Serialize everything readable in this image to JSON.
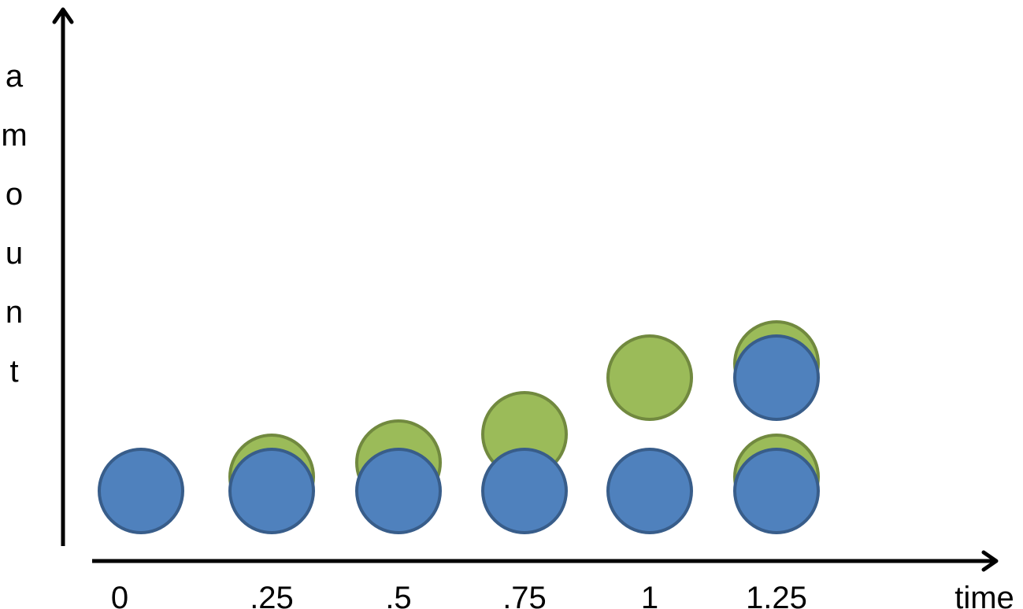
{
  "diagram": {
    "title": "",
    "xlabel": "time",
    "ylabel": "amount",
    "ticks": [
      "0",
      ".25",
      ".5",
      ".75",
      "1",
      "1.25"
    ],
    "colors": {
      "green_fill": "#9bbb59",
      "green_stroke": "#71893f",
      "blue_fill": "#4f81bd",
      "blue_stroke": "#385d8a"
    },
    "columns": [
      {
        "tick": "0",
        "circles": [
          {
            "color": "blue",
            "level": 0
          }
        ]
      },
      {
        "tick": ".25",
        "circles": [
          {
            "color": "green",
            "level": 0.25
          },
          {
            "color": "blue",
            "level": 0
          }
        ]
      },
      {
        "tick": ".5",
        "circles": [
          {
            "color": "green",
            "level": 0.5
          },
          {
            "color": "blue",
            "level": 0
          }
        ]
      },
      {
        "tick": ".75",
        "circles": [
          {
            "color": "green",
            "level": 1
          },
          {
            "color": "blue",
            "level": 0
          }
        ]
      },
      {
        "tick": "1",
        "circles": [
          {
            "color": "green",
            "level": 2
          },
          {
            "color": "blue",
            "level": 0
          }
        ]
      },
      {
        "tick": "1.25",
        "circles": [
          {
            "color": "green",
            "level": 2.25
          },
          {
            "color": "blue",
            "level": 2
          },
          {
            "color": "green",
            "level": 0.25
          },
          {
            "color": "blue",
            "level": 0
          }
        ]
      }
    ]
  }
}
